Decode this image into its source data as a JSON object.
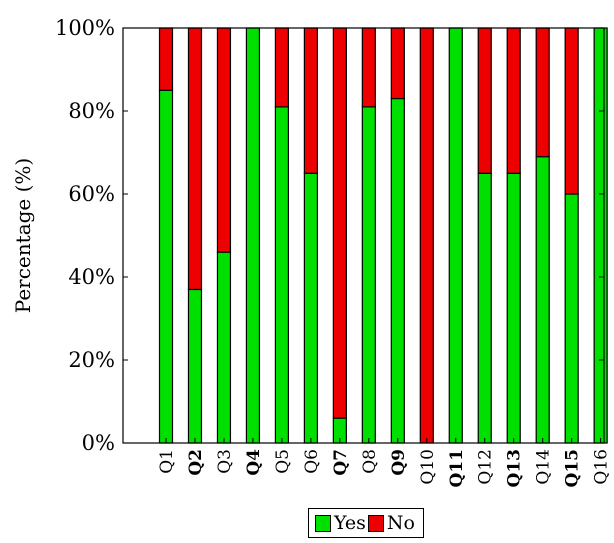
{
  "chart_data": {
    "type": "bar",
    "stacked": true,
    "title": "",
    "xlabel": "",
    "ylabel": "Percentage (%)",
    "ylim": [
      0,
      100
    ],
    "yticks": [
      "0%",
      "20%",
      "40%",
      "60%",
      "80%",
      "100%"
    ],
    "categories": [
      "Q1",
      "Q2",
      "Q3",
      "Q4",
      "Q5",
      "Q6",
      "Q7",
      "Q8",
      "Q9",
      "Q10",
      "Q11",
      "Q12",
      "Q13",
      "Q14",
      "Q15",
      "Q16"
    ],
    "bold_categories": [
      "Q2",
      "Q4",
      "Q7",
      "Q9",
      "Q11",
      "Q13",
      "Q15"
    ],
    "series": [
      {
        "name": "Yes",
        "color": "#00e000",
        "values": [
          85,
          37,
          46,
          100,
          81,
          65,
          6,
          81,
          83,
          0,
          100,
          65,
          65,
          69,
          60,
          100
        ]
      },
      {
        "name": "No",
        "color": "#ee0000",
        "values": [
          15,
          63,
          54,
          0,
          19,
          35,
          94,
          19,
          17,
          100,
          0,
          35,
          35,
          31,
          40,
          0
        ]
      }
    ],
    "legend_position": "bottom",
    "grid": false
  }
}
